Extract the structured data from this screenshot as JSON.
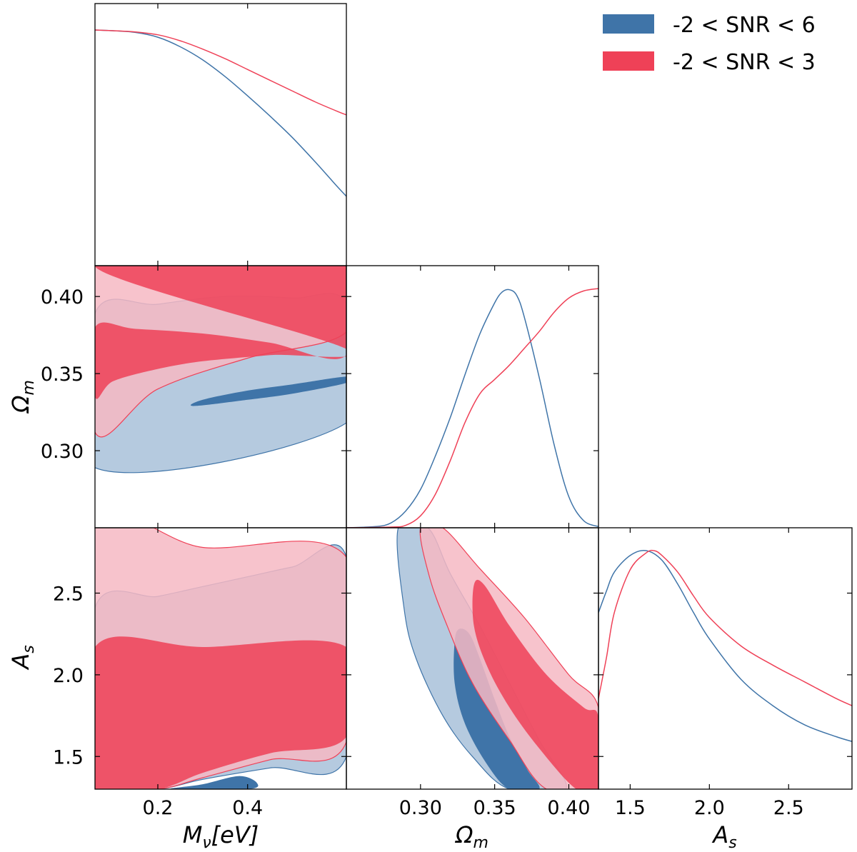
{
  "colors": {
    "series_a": "#3f74a8",
    "series_a_light": "#b5cadf",
    "series_b": "#ef4157",
    "series_b_light": "#f6b8c3"
  },
  "legend": {
    "entries": [
      {
        "label": "-2 < SNR < 6",
        "color": "#3f74a8"
      },
      {
        "label": "-2 < SNR < 3",
        "color": "#ef4157"
      }
    ]
  },
  "axis_labels": {
    "mnu": "Mν[eV]",
    "omega_m": "Ωm",
    "a_s": "As"
  },
  "chart_data": {
    "type": "corner",
    "parameters": [
      "Mν[eV]",
      "Ωm",
      "As"
    ],
    "ranges": {
      "mnu": [
        0.06,
        0.62
      ],
      "omega_m": [
        0.25,
        0.42
      ],
      "a_s": [
        1.3,
        2.9
      ]
    },
    "ticks": {
      "mnu": [
        0.2,
        0.4
      ],
      "omega_m_y": [
        0.3,
        0.35,
        0.4
      ],
      "omega_m_x": [
        0.3,
        0.35,
        0.4
      ],
      "a_s_y": [
        1.5,
        2.0,
        2.5
      ],
      "a_s_x": [
        1.5,
        2.0,
        2.5
      ]
    },
    "tick_labels": {
      "mnu": [
        "0.2",
        "0.4"
      ],
      "omega_m_y": [
        "0.30",
        "0.35",
        "0.40"
      ],
      "omega_m_x": [
        "0.30",
        "0.35",
        "0.40"
      ],
      "a_s_y": [
        "1.5",
        "2.0",
        "2.5"
      ],
      "a_s_x": [
        "1.5",
        "2.0",
        "2.5"
      ]
    },
    "series": [
      {
        "name": "-2 < SNR < 6",
        "marginals": {
          "mnu": [
            [
              0.06,
              0.985
            ],
            [
              0.1,
              0.982
            ],
            [
              0.15,
              0.975
            ],
            [
              0.2,
              0.955
            ],
            [
              0.25,
              0.915
            ],
            [
              0.3,
              0.86
            ],
            [
              0.35,
              0.79
            ],
            [
              0.4,
              0.71
            ],
            [
              0.45,
              0.625
            ],
            [
              0.5,
              0.535
            ],
            [
              0.55,
              0.435
            ],
            [
              0.6,
              0.33
            ],
            [
              0.62,
              0.29
            ]
          ],
          "omega_m": [
            [
              0.25,
              0.0
            ],
            [
              0.27,
              0.005
            ],
            [
              0.28,
              0.02
            ],
            [
              0.29,
              0.07
            ],
            [
              0.3,
              0.16
            ],
            [
              0.31,
              0.3
            ],
            [
              0.32,
              0.46
            ],
            [
              0.33,
              0.64
            ],
            [
              0.34,
              0.81
            ],
            [
              0.35,
              0.94
            ],
            [
              0.355,
              0.985
            ],
            [
              0.36,
              0.995
            ],
            [
              0.365,
              0.97
            ],
            [
              0.37,
              0.88
            ],
            [
              0.38,
              0.63
            ],
            [
              0.39,
              0.35
            ],
            [
              0.4,
              0.13
            ],
            [
              0.41,
              0.03
            ],
            [
              0.42,
              0.005
            ]
          ],
          "a_s": [
            [
              1.3,
              0.74
            ],
            [
              1.35,
              0.83
            ],
            [
              1.4,
              0.91
            ],
            [
              1.5,
              0.98
            ],
            [
              1.6,
              1.0
            ],
            [
              1.7,
              0.96
            ],
            [
              1.8,
              0.86
            ],
            [
              1.9,
              0.74
            ],
            [
              2.0,
              0.63
            ],
            [
              2.2,
              0.46
            ],
            [
              2.4,
              0.35
            ],
            [
              2.6,
              0.27
            ],
            [
              2.8,
              0.22
            ],
            [
              2.9,
              0.2
            ]
          ]
        },
        "contours": {
          "mnu_omega_m": {
            "sigma2": [
              [
                0.06,
                0.289
              ],
              [
                0.62,
                0.318
              ],
              [
                0.62,
                0.395
              ],
              [
                0.5,
                0.399
              ],
              [
                0.35,
                0.4
              ],
              [
                0.2,
                0.395
              ],
              [
                0.06,
                0.389
              ]
            ],
            "sigma1": [
              [
                0.28,
                0.329
              ],
              [
                0.4,
                0.333
              ],
              [
                0.5,
                0.337
              ],
              [
                0.62,
                0.344
              ],
              [
                0.62,
                0.348
              ],
              [
                0.5,
                0.343
              ],
              [
                0.4,
                0.339
              ],
              [
                0.3,
                0.333
              ]
            ]
          },
          "mnu_a_s": {
            "sigma2": [
              [
                0.06,
                2.41
              ],
              [
                0.2,
                2.48
              ],
              [
                0.3,
                2.54
              ],
              [
                0.4,
                2.6
              ],
              [
                0.5,
                2.66
              ],
              [
                0.62,
                2.72
              ],
              [
                0.62,
                1.5
              ],
              [
                0.45,
                1.43
              ],
              [
                0.3,
                1.36
              ],
              [
                0.2,
                1.3
              ],
              [
                0.06,
                1.3
              ]
            ],
            "sigma1": [
              [
                0.23,
                1.3
              ],
              [
                0.3,
                1.33
              ],
              [
                0.38,
                1.38
              ],
              [
                0.42,
                1.34
              ],
              [
                0.4,
                1.3
              ]
            ]
          },
          "omega_m_a_s": {
            "sigma2": [
              [
                0.285,
                2.9
              ],
              [
                0.305,
                2.9
              ],
              [
                0.32,
                2.62
              ],
              [
                0.34,
                2.3
              ],
              [
                0.36,
                1.95
              ],
              [
                0.38,
                1.6
              ],
              [
                0.398,
                1.3
              ],
              [
                0.36,
                1.3
              ],
              [
                0.335,
                1.5
              ],
              [
                0.315,
                1.75
              ],
              [
                0.297,
                2.1
              ],
              [
                0.289,
                2.4
              ]
            ],
            "sigma1": [
              [
                0.323,
                2.2
              ],
              [
                0.326,
                2.28
              ],
              [
                0.333,
                2.25
              ],
              [
                0.34,
                2.1
              ],
              [
                0.35,
                1.85
              ],
              [
                0.36,
                1.62
              ],
              [
                0.372,
                1.42
              ],
              [
                0.38,
                1.3
              ],
              [
                0.36,
                1.3
              ],
              [
                0.345,
                1.45
              ],
              [
                0.33,
                1.7
              ],
              [
                0.323,
                1.95
              ]
            ]
          }
        }
      },
      {
        "name": "-2 < SNR < 3",
        "marginals": {
          "mnu": [
            [
              0.06,
              0.985
            ],
            [
              0.1,
              0.982
            ],
            [
              0.15,
              0.977
            ],
            [
              0.2,
              0.965
            ],
            [
              0.25,
              0.94
            ],
            [
              0.3,
              0.905
            ],
            [
              0.35,
              0.865
            ],
            [
              0.4,
              0.82
            ],
            [
              0.45,
              0.775
            ],
            [
              0.5,
              0.73
            ],
            [
              0.55,
              0.685
            ],
            [
              0.6,
              0.645
            ],
            [
              0.62,
              0.63
            ]
          ],
          "omega_m": [
            [
              0.25,
              0.0
            ],
            [
              0.28,
              0.003
            ],
            [
              0.29,
              0.01
            ],
            [
              0.3,
              0.05
            ],
            [
              0.31,
              0.14
            ],
            [
              0.32,
              0.28
            ],
            [
              0.33,
              0.44
            ],
            [
              0.34,
              0.56
            ],
            [
              0.35,
              0.62
            ],
            [
              0.36,
              0.68
            ],
            [
              0.37,
              0.75
            ],
            [
              0.38,
              0.82
            ],
            [
              0.39,
              0.9
            ],
            [
              0.4,
              0.96
            ],
            [
              0.41,
              0.99
            ],
            [
              0.42,
              1.0
            ]
          ],
          "a_s": [
            [
              1.3,
              0.38
            ],
            [
              1.35,
              0.55
            ],
            [
              1.4,
              0.74
            ],
            [
              1.5,
              0.92
            ],
            [
              1.6,
              0.99
            ],
            [
              1.65,
              1.0
            ],
            [
              1.7,
              0.98
            ],
            [
              1.8,
              0.91
            ],
            [
              1.9,
              0.81
            ],
            [
              2.0,
              0.72
            ],
            [
              2.2,
              0.6
            ],
            [
              2.4,
              0.52
            ],
            [
              2.6,
              0.45
            ],
            [
              2.8,
              0.38
            ],
            [
              2.9,
              0.35
            ]
          ]
        },
        "contours": {
          "mnu_omega_m": {
            "sigma2": [
              [
                0.06,
                0.42
              ],
              [
                0.62,
                0.42
              ],
              [
                0.62,
                0.377
              ],
              [
                0.4,
                0.36
              ],
              [
                0.2,
                0.34
              ],
              [
                0.06,
                0.312
              ]
            ],
            "sigma1": [
              [
                0.06,
                0.42
              ],
              [
                0.62,
                0.42
              ],
              [
                0.62,
                0.362
              ],
              [
                0.45,
                0.37
              ],
              [
                0.3,
                0.376
              ],
              [
                0.15,
                0.379
              ],
              [
                0.06,
                0.38
              ],
              [
                0.06,
                0.335
              ],
              [
                0.1,
                0.345
              ],
              [
                0.2,
                0.353
              ],
              [
                0.3,
                0.358
              ],
              [
                0.45,
                0.362
              ],
              [
                0.62,
                0.366
              ]
            ]
          },
          "mnu_a_s": {
            "sigma2": [
              [
                0.06,
                2.9
              ],
              [
                0.3,
                2.78
              ],
              [
                0.62,
                2.72
              ],
              [
                0.62,
                1.59
              ],
              [
                0.45,
                1.48
              ],
              [
                0.3,
                1.37
              ],
              [
                0.2,
                1.3
              ],
              [
                0.06,
                1.3
              ]
            ],
            "sigma1": [
              [
                0.06,
                2.17
              ],
              [
                0.3,
                2.17
              ],
              [
                0.62,
                2.17
              ],
              [
                0.62,
                1.62
              ],
              [
                0.45,
                1.52
              ],
              [
                0.3,
                1.4
              ],
              [
                0.2,
                1.3
              ],
              [
                0.06,
                1.3
              ]
            ]
          },
          "omega_m_a_s": {
            "sigma2": [
              [
                0.3,
                2.9
              ],
              [
                0.315,
                2.9
              ],
              [
                0.34,
                2.65
              ],
              [
                0.37,
                2.35
              ],
              [
                0.4,
                2.0
              ],
              [
                0.42,
                1.8
              ],
              [
                0.42,
                1.3
              ],
              [
                0.385,
                1.3
              ],
              [
                0.36,
                1.6
              ],
              [
                0.335,
                1.95
              ],
              [
                0.318,
                2.3
              ],
              [
                0.306,
                2.6
              ]
            ],
            "sigma1": [
              [
                0.336,
                2.55
              ],
              [
                0.343,
                2.55
              ],
              [
                0.36,
                2.3
              ],
              [
                0.385,
                2.0
              ],
              [
                0.41,
                1.8
              ],
              [
                0.42,
                1.74
              ],
              [
                0.42,
                1.3
              ],
              [
                0.405,
                1.3
              ],
              [
                0.38,
                1.55
              ],
              [
                0.36,
                1.8
              ],
              [
                0.345,
                2.05
              ],
              [
                0.336,
                2.3
              ]
            ]
          }
        }
      }
    ]
  }
}
